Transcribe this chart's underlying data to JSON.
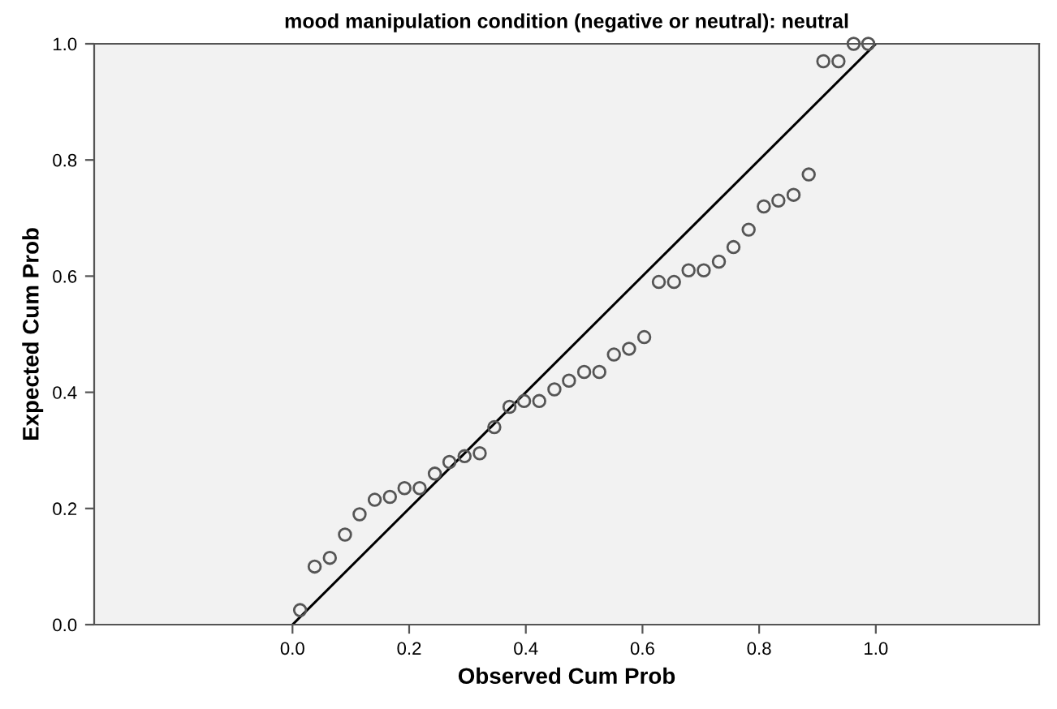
{
  "chart_data": {
    "type": "scatter",
    "title": "mood manipulation condition (negative or neutral): neutral",
    "xlabel": "Observed Cum Prob",
    "ylabel": "Expected Cum Prob",
    "series": [
      {
        "marker": "circle",
        "color": "#555555",
        "x": [
          0.013,
          0.038,
          0.064,
          0.09,
          0.115,
          0.141,
          0.167,
          0.192,
          0.218,
          0.244,
          0.269,
          0.295,
          0.321,
          0.346,
          0.372,
          0.397,
          0.423,
          0.449,
          0.474,
          0.5,
          0.526,
          0.551,
          0.577,
          0.603,
          0.628,
          0.654,
          0.679,
          0.705,
          0.731,
          0.756,
          0.782,
          0.808,
          0.833,
          0.859,
          0.885,
          0.91,
          0.936,
          0.962,
          0.987
        ],
        "values": [
          0.025,
          0.1,
          0.115,
          0.155,
          0.19,
          0.215,
          0.22,
          0.235,
          0.235,
          0.26,
          0.28,
          0.29,
          0.295,
          0.34,
          0.375,
          0.385,
          0.385,
          0.405,
          0.42,
          0.435,
          0.435,
          0.465,
          0.475,
          0.495,
          0.59,
          0.59,
          0.61,
          0.61,
          0.625,
          0.65,
          0.68,
          0.72,
          0.73,
          0.74,
          0.775,
          0.97,
          0.97,
          1.0,
          1.0
        ]
      },
      {
        "type": "line",
        "marker": "none",
        "color": "#000000",
        "x": [
          0.0,
          1.0
        ],
        "values": [
          0.0,
          1.0
        ]
      }
    ],
    "xlim": [
      -0.34,
      1.28
    ],
    "ylim": [
      0.0,
      1.0
    ],
    "xticks": [
      {
        "value": 0.0,
        "label": "0.0"
      },
      {
        "value": 0.2,
        "label": "0.2"
      },
      {
        "value": 0.4,
        "label": "0.4"
      },
      {
        "value": 0.6,
        "label": "0.6"
      },
      {
        "value": 0.8,
        "label": "0.8"
      },
      {
        "value": 1.0,
        "label": "1.0"
      }
    ],
    "yticks": [
      {
        "value": 0.0,
        "label": "0.0"
      },
      {
        "value": 0.2,
        "label": "0.2"
      },
      {
        "value": 0.4,
        "label": "0.4"
      },
      {
        "value": 0.6,
        "label": "0.6"
      },
      {
        "value": 0.8,
        "label": "0.8"
      },
      {
        "value": 1.0,
        "label": "1.0"
      }
    ],
    "grid": false,
    "legend": false
  }
}
